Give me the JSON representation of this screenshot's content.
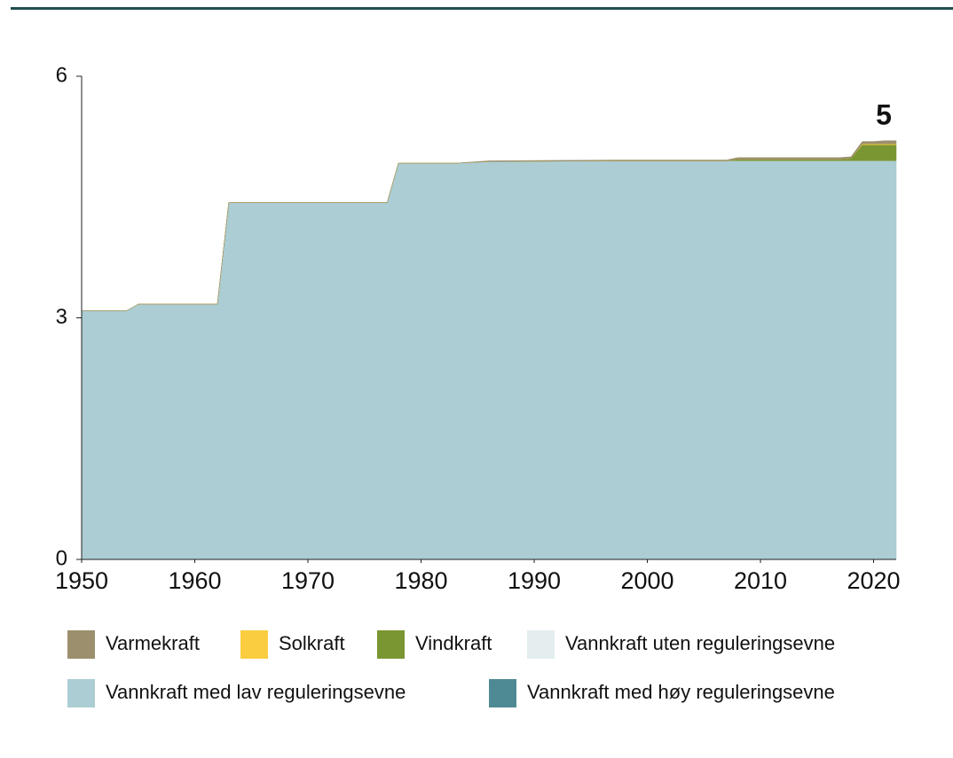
{
  "chart_data": {
    "type": "area",
    "stacked": true,
    "annotation": "5",
    "x": [
      1950,
      1954,
      1955,
      1962,
      1963,
      1977,
      1978,
      1983,
      1986,
      1997,
      2007,
      2008,
      2017,
      2018,
      2019,
      2020,
      2021,
      2022
    ],
    "xlim": [
      1950,
      2022
    ],
    "xticks": [
      1950,
      1960,
      1970,
      1980,
      1990,
      2000,
      2010,
      2020
    ],
    "ylim": [
      0,
      6
    ],
    "yticks": [
      0,
      3,
      6
    ],
    "series": [
      {
        "name": "Varmekraft",
        "color": "#9b8f6e",
        "values": [
          0,
          0,
          0,
          0,
          0,
          0,
          0,
          0,
          0.01,
          0.01,
          0.01,
          0.02,
          0.02,
          0.02,
          0.03,
          0.03,
          0.04,
          0.04
        ]
      },
      {
        "name": "Solkraft",
        "color": "#f9cd3f",
        "values": [
          0,
          0,
          0,
          0,
          0,
          0,
          0,
          0,
          0,
          0,
          0,
          0,
          0,
          0,
          0.01,
          0.01,
          0.01,
          0.01
        ]
      },
      {
        "name": "Vindkraft",
        "color": "#7a9632",
        "values": [
          0,
          0,
          0,
          0,
          0,
          0,
          0,
          0,
          0,
          0,
          0,
          0.02,
          0.02,
          0.03,
          0.2,
          0.2,
          0.2,
          0.2
        ]
      },
      {
        "name": "Vannkraft uten reguleringsevne",
        "color": "#e4eeef",
        "values": [
          0,
          0,
          0,
          0,
          0,
          0,
          0,
          0,
          0,
          0,
          0,
          0,
          0,
          0,
          0,
          0,
          0,
          0
        ]
      },
      {
        "name": "Vannkraft med lav reguleringsevne",
        "color": "#abcdd3",
        "values": [
          3.09,
          3.09,
          3.17,
          3.17,
          4.43,
          4.43,
          4.92,
          4.92,
          4.94,
          4.95,
          4.95,
          4.95,
          4.95,
          4.95,
          4.95,
          4.95,
          4.95,
          4.95
        ]
      },
      {
        "name": "Vannkraft med høy reguleringsevne",
        "color": "#4e8a93",
        "values": [
          0,
          0,
          0,
          0,
          0,
          0,
          0,
          0,
          0,
          0,
          0,
          0,
          0,
          0,
          0,
          0,
          0,
          0
        ]
      }
    ]
  }
}
